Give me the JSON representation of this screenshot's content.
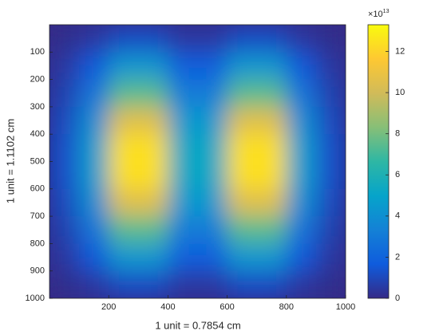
{
  "chart_data": {
    "type": "heatmap",
    "xlabel": "1 unit = 0.7854 cm",
    "ylabel": "1 unit = 1.1102 cm",
    "x": [
      50,
      150,
      250,
      350,
      450,
      550,
      650,
      750,
      850,
      950
    ],
    "y": [
      50,
      150,
      250,
      350,
      450,
      550,
      650,
      750,
      850,
      950
    ],
    "values": [
      [
        0.1,
        0.5,
        1.2,
        1.2,
        0.5,
        0.5,
        1.2,
        1.2,
        0.5,
        0.1
      ],
      [
        0.5,
        1.6,
        4.3,
        4.3,
        1.8,
        1.8,
        4.3,
        4.3,
        1.6,
        0.5
      ],
      [
        0.8,
        2.7,
        7.4,
        7.4,
        3.1,
        3.1,
        7.4,
        7.4,
        2.7,
        0.8
      ],
      [
        1.1,
        3.9,
        10.5,
        10.5,
        4.4,
        4.4,
        10.5,
        10.5,
        3.9,
        1.1
      ],
      [
        1.3,
        4.6,
        12.4,
        12.4,
        5.2,
        5.2,
        12.4,
        12.4,
        4.6,
        1.3
      ],
      [
        1.3,
        4.6,
        12.4,
        12.4,
        5.2,
        5.2,
        12.4,
        12.4,
        4.6,
        1.3
      ],
      [
        1.1,
        3.9,
        10.5,
        10.5,
        4.4,
        4.4,
        10.5,
        10.5,
        3.9,
        1.1
      ],
      [
        0.8,
        2.7,
        7.4,
        7.4,
        3.1,
        3.1,
        7.4,
        7.4,
        2.7,
        0.8
      ],
      [
        0.5,
        1.6,
        4.3,
        4.3,
        1.8,
        1.8,
        4.3,
        4.3,
        1.6,
        0.5
      ],
      [
        0.1,
        0.5,
        1.2,
        1.2,
        0.5,
        0.5,
        1.2,
        1.2,
        0.5,
        0.1
      ]
    ],
    "xlim": [
      0,
      1000
    ],
    "ylim": [
      0,
      1000
    ],
    "y_reversed": true,
    "xticks": [
      200,
      400,
      600,
      800,
      1000
    ],
    "yticks": [
      100,
      200,
      300,
      400,
      500,
      600,
      700,
      800,
      900,
      1000
    ],
    "colormap": "parula",
    "clim": [
      0,
      13.3
    ],
    "cticks": [
      0,
      2,
      4,
      6,
      8,
      10,
      12
    ],
    "colorbar_scale": {
      "base": "×10",
      "exponent": "13"
    }
  }
}
